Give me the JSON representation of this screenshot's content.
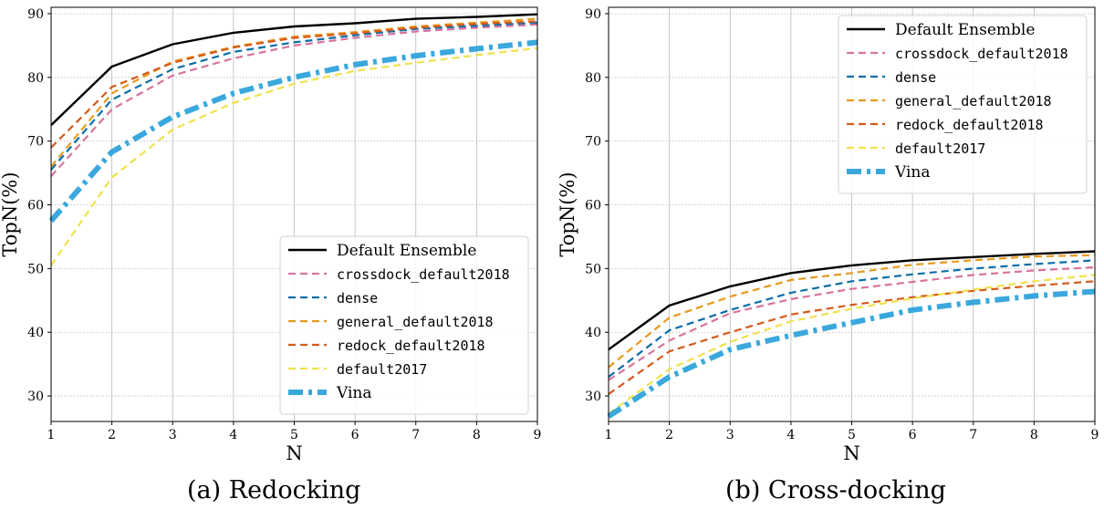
{
  "colors": {
    "default_ensemble": "#000000",
    "crossdock_default2018": "#d8739e",
    "dense": "#0a6ea8",
    "general_default2018": "#e69a1f",
    "redock_default2018": "#d55a1c",
    "default2017": "#f0e24a",
    "vina": "#3aa8dd",
    "grid": "#b8b8b8"
  },
  "chart_data": [
    {
      "type": "line",
      "caption": "(a) Redocking",
      "xlabel": "N",
      "ylabel": "TopN(%)",
      "x": [
        1,
        2,
        3,
        4,
        5,
        6,
        7,
        8,
        9
      ],
      "xlim": [
        1,
        9
      ],
      "ylim": [
        26,
        91
      ],
      "yticks": [
        30,
        40,
        50,
        60,
        70,
        80,
        90
      ],
      "grid": true,
      "legend_position": "lower-right",
      "series": [
        {
          "name": "Default Ensemble",
          "values": [
            72.5,
            81.7,
            85.2,
            87.0,
            88.0,
            88.5,
            89.2,
            89.5,
            89.9
          ]
        },
        {
          "name": "crossdock_default2018",
          "values": [
            64.5,
            75.0,
            80.3,
            83.0,
            85.0,
            86.2,
            87.2,
            87.8,
            88.3
          ]
        },
        {
          "name": "dense",
          "values": [
            65.5,
            76.5,
            81.3,
            84.0,
            85.5,
            86.6,
            87.6,
            88.1,
            88.6
          ]
        },
        {
          "name": "general_default2018",
          "values": [
            66.0,
            77.5,
            82.5,
            84.8,
            86.4,
            87.1,
            88.0,
            88.6,
            89.2
          ]
        },
        {
          "name": "redock_default2018",
          "values": [
            69.0,
            78.5,
            82.3,
            84.7,
            86.2,
            86.9,
            87.8,
            88.4,
            88.8
          ]
        },
        {
          "name": "default2017",
          "values": [
            50.5,
            64.3,
            71.8,
            76.0,
            79.0,
            81.0,
            82.3,
            83.5,
            84.6
          ]
        },
        {
          "name": "Vina",
          "values": [
            57.5,
            68.3,
            73.8,
            77.5,
            80.0,
            82.0,
            83.4,
            84.5,
            85.5
          ]
        }
      ]
    },
    {
      "type": "line",
      "caption": "(b) Cross-docking",
      "xlabel": "N",
      "ylabel": "TopN(%)",
      "x": [
        1,
        2,
        3,
        4,
        5,
        6,
        7,
        8,
        9
      ],
      "xlim": [
        1,
        9
      ],
      "ylim": [
        26,
        91
      ],
      "yticks": [
        30,
        40,
        50,
        60,
        70,
        80,
        90
      ],
      "grid": true,
      "legend_position": "upper-right",
      "series": [
        {
          "name": "Default Ensemble",
          "values": [
            37.3,
            44.2,
            47.2,
            49.3,
            50.5,
            51.3,
            51.8,
            52.3,
            52.7
          ]
        },
        {
          "name": "crossdock_default2018",
          "values": [
            32.5,
            38.7,
            43.0,
            45.2,
            46.8,
            47.9,
            49.0,
            49.7,
            50.2
          ]
        },
        {
          "name": "dense",
          "values": [
            33.0,
            40.3,
            43.5,
            46.2,
            48.0,
            49.1,
            50.0,
            50.7,
            51.3
          ]
        },
        {
          "name": "general_default2018",
          "values": [
            34.5,
            42.3,
            45.6,
            48.2,
            49.3,
            50.6,
            51.3,
            51.9,
            52.1
          ]
        },
        {
          "name": "redock_default2018",
          "values": [
            30.3,
            37.0,
            40.0,
            42.8,
            44.3,
            45.5,
            46.5,
            47.3,
            48.0
          ]
        },
        {
          "name": "default2017",
          "values": [
            27.2,
            34.2,
            38.5,
            41.7,
            43.7,
            45.3,
            46.7,
            48.0,
            49.0
          ]
        },
        {
          "name": "Vina",
          "values": [
            26.8,
            33.0,
            37.3,
            39.5,
            41.5,
            43.5,
            44.7,
            45.7,
            46.4
          ]
        }
      ]
    }
  ]
}
